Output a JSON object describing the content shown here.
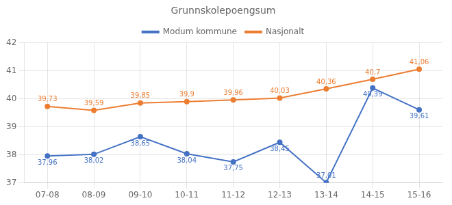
{
  "chart_data": {
    "type": "line",
    "title": "Grunnskolepoengsum",
    "categories": [
      "07-08",
      "08-09",
      "09-10",
      "10-11",
      "11-12",
      "12-13",
      "13-14",
      "14-15",
      "15-16"
    ],
    "series": [
      {
        "name": "Modum kommune",
        "color": "#4472C4",
        "values": [
          37.96,
          38.02,
          38.65,
          38.04,
          37.75,
          38.45,
          37.01,
          40.39,
          39.61
        ],
        "value_labels": [
          "37,96",
          "38,02",
          "38,65",
          "38,04",
          "37,75",
          "38,45",
          "37,01",
          "40,39",
          "39,61"
        ]
      },
      {
        "name": "Nasjonalt",
        "color": "#ED7D31",
        "values": [
          39.73,
          39.59,
          39.85,
          39.9,
          39.96,
          40.03,
          40.36,
          40.7,
          41.06
        ],
        "value_labels": [
          "39,73",
          "39,59",
          "39,85",
          "39,9",
          "39,96",
          "40,03",
          "40,36",
          "40,7",
          "41,06"
        ]
      }
    ],
    "ylim": [
      37.0,
      42.0
    ],
    "yticks": [
      37,
      38,
      39,
      40,
      41,
      42
    ],
    "grid": true,
    "legend": "top",
    "data_labels": true,
    "marker": "circle"
  }
}
